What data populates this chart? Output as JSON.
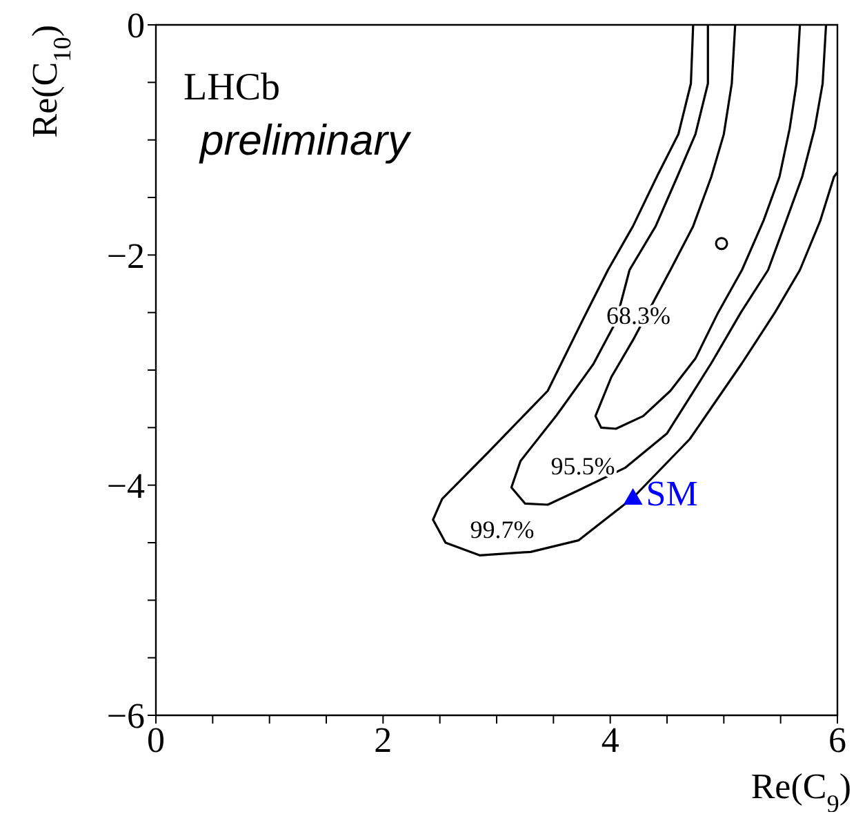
{
  "chart_data": {
    "type": "line",
    "xlabel": "Re(C$_{9}$)",
    "ylabel": "Re(C$_{10}$)",
    "xlim": [
      0,
      6
    ],
    "ylim": [
      -6,
      0
    ],
    "xticks": [
      0,
      {
        "value": 0.5,
        "label": null
      },
      {
        "value": 1,
        "label": null
      },
      {
        "value": 1.5,
        "label": null
      },
      2,
      {
        "value": 2.5,
        "label": null
      },
      {
        "value": 3,
        "label": null
      },
      {
        "value": 3.5,
        "label": null
      },
      4,
      {
        "value": 4.5,
        "label": null
      },
      {
        "value": 5,
        "label": null
      },
      {
        "value": 5.5,
        "label": null
      },
      6
    ],
    "yticks": [
      -6,
      {
        "value": -5.5,
        "label": null
      },
      {
        "value": -5,
        "label": null
      },
      {
        "value": -4.5,
        "label": null
      },
      -4,
      {
        "value": -3.5,
        "label": null
      },
      {
        "value": -3,
        "label": null
      },
      {
        "value": -2.5,
        "label": null
      },
      -2,
      {
        "value": -1.5,
        "label": null
      },
      {
        "value": -1,
        "label": null
      },
      {
        "value": -0.5,
        "label": null
      },
      0
    ],
    "series": [
      {
        "type": "line",
        "color": "#000000",
        "x": [
          4.73,
          4.71,
          4.6,
          4.41,
          4.2,
          3.98,
          3.75,
          3.45,
          2.93,
          2.52,
          2.44,
          2.55,
          2.85,
          3.0,
          3.3,
          3.72,
          4.2,
          4.7,
          5.16,
          5.45,
          5.67,
          5.85,
          5.97,
          6.0
        ],
        "values": [
          0,
          -0.51,
          -0.95,
          -1.32,
          -1.75,
          -2.13,
          -2.58,
          -3.18,
          -3.71,
          -4.12,
          -4.3,
          -4.5,
          -4.61,
          -4.6,
          -4.58,
          -4.48,
          -4.11,
          -3.6,
          -2.94,
          -2.5,
          -2.13,
          -1.7,
          -1.32,
          -1.28
        ]
      },
      {
        "type": "line",
        "color": "#000000",
        "x": [
          4.86,
          4.86,
          4.75,
          4.59,
          4.4,
          4.17,
          4.05,
          3.85,
          3.53,
          3.21,
          3.13,
          3.25,
          3.45,
          3.71,
          4.13,
          4.5,
          4.89,
          5.15,
          5.39,
          5.55,
          5.69,
          5.8,
          5.87,
          5.9
        ],
        "values": [
          0,
          -0.51,
          -0.95,
          -1.32,
          -1.75,
          -2.13,
          -2.58,
          -2.95,
          -3.39,
          -3.79,
          -4.02,
          -4.16,
          -4.17,
          -4.05,
          -3.85,
          -3.55,
          -2.94,
          -2.5,
          -2.13,
          -1.7,
          -1.32,
          -0.9,
          -0.51,
          0
        ]
      },
      {
        "type": "line",
        "color": "#000000",
        "x": [
          5.1,
          5.07,
          5.0,
          4.89,
          4.73,
          4.53,
          4.2,
          4.01,
          3.87,
          3.92,
          4.05,
          4.29,
          4.53,
          4.75,
          4.95,
          5.16,
          5.35,
          5.49,
          5.58,
          5.64,
          5.67
        ],
        "values": [
          0,
          -0.51,
          -0.95,
          -1.32,
          -1.75,
          -2.13,
          -2.74,
          -3.06,
          -3.4,
          -3.5,
          -3.51,
          -3.4,
          -3.18,
          -2.9,
          -2.5,
          -2.13,
          -1.7,
          -1.32,
          -0.9,
          -0.51,
          0
        ]
      },
      {
        "type": "scatter",
        "marker": "circle",
        "color": "#000000",
        "x": [
          4.98
        ],
        "values": [
          -1.9
        ]
      },
      {
        "type": "scatter",
        "marker": "triangle",
        "name": "SM",
        "color": "#0000ff",
        "x": [
          4.2
        ],
        "values": [
          -4.11
        ]
      }
    ],
    "annotations": [
      "LHCb",
      "preliminary",
      {
        "text": "99.7%",
        "x": 3.0,
        "y": -4.6
      },
      {
        "text": "95.5%",
        "x": 3.71,
        "y": -4.05
      },
      {
        "text": "68.3%",
        "x": 4.2,
        "y": -2.74
      }
    ]
  }
}
